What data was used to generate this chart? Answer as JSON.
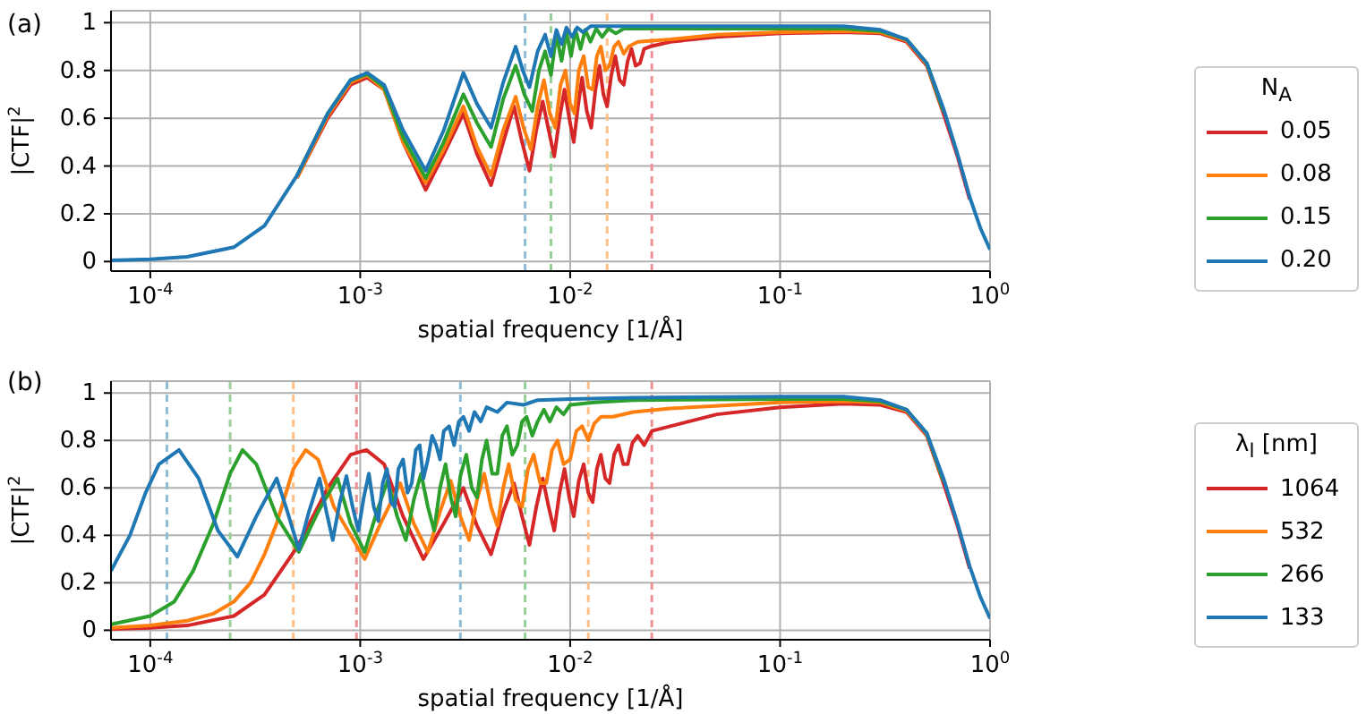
{
  "chart_data": [
    {
      "type": "line",
      "title": "(a)",
      "xlabel": "spatial frequency [1/Å]",
      "ylabel": "|CTF|$^{2}$",
      "legend_title": "N$_{A}$",
      "legend": "right",
      "grid": true,
      "log": "x",
      "xlim": [
        6.5e-05,
        1
      ],
      "xticks": [
        {
          "value": 0.0001,
          "label": "10$^{-4}$"
        },
        {
          "value": 0.001,
          "label": "10$^{-3}$"
        },
        {
          "value": 0.01,
          "label": "10$^{-2}$"
        },
        {
          "value": 0.1,
          "label": "10$^{-1}$"
        },
        {
          "value": 1,
          "label": "10$^{0}$"
        }
      ],
      "ylim": [
        -0.04,
        1.05
      ],
      "yticks": [
        0,
        0.2,
        0.4,
        0.6,
        0.8,
        1
      ],
      "ref_lines": [
        {
          "axis": "x",
          "value": 0.0245,
          "color": "#eb9394",
          "line_style": "dashed"
        },
        {
          "axis": "x",
          "value": 0.015,
          "color": "#ffbf87",
          "line_style": "dashed"
        },
        {
          "axis": "x",
          "value": 0.0081,
          "color": "#95d095",
          "line_style": "dashed"
        },
        {
          "axis": "x",
          "value": 0.0061,
          "color": "#8fbbd9",
          "line_style": "dashed"
        }
      ],
      "series": [
        {
          "name": "0.05",
          "color": "#d62728",
          "x": [
            0.0005,
            0.0007,
            0.0009,
            0.00108,
            0.0013,
            0.0016,
            0.00205,
            0.0025,
            0.0031,
            0.0036,
            0.0042,
            0.0048,
            0.0054,
            0.0059,
            0.0064,
            0.0069,
            0.0074,
            0.0079,
            0.0084,
            0.0089,
            0.0094,
            0.0099,
            0.0104,
            0.0109,
            0.0114,
            0.012,
            0.0126,
            0.0132,
            0.0138,
            0.0144,
            0.015,
            0.0157,
            0.0164,
            0.0172,
            0.018,
            0.0188,
            0.0196,
            0.0205,
            0.0215,
            0.0225,
            0.024,
            0.03,
            0.05,
            0.1,
            0.2,
            0.3,
            0.4,
            0.5,
            0.6,
            0.7,
            0.8
          ],
          "values": [
            0.35,
            0.6,
            0.74,
            0.77,
            0.72,
            0.5,
            0.3,
            0.45,
            0.62,
            0.45,
            0.32,
            0.5,
            0.65,
            0.5,
            0.38,
            0.55,
            0.67,
            0.55,
            0.44,
            0.6,
            0.72,
            0.6,
            0.5,
            0.65,
            0.77,
            0.63,
            0.56,
            0.72,
            0.82,
            0.7,
            0.65,
            0.78,
            0.86,
            0.76,
            0.74,
            0.84,
            0.89,
            0.82,
            0.83,
            0.89,
            0.9,
            0.92,
            0.94,
            0.955,
            0.96,
            0.955,
            0.92,
            0.82,
            0.62,
            0.44,
            0.26
          ]
        },
        {
          "name": "0.08",
          "color": "#ff7f0e",
          "x": [
            0.0005,
            0.0007,
            0.0009,
            0.00108,
            0.0013,
            0.0016,
            0.00205,
            0.0025,
            0.0031,
            0.0036,
            0.0042,
            0.0048,
            0.0055,
            0.006,
            0.0065,
            0.007,
            0.0075,
            0.008,
            0.0085,
            0.009,
            0.0095,
            0.01,
            0.0105,
            0.011,
            0.0116,
            0.0122,
            0.0128,
            0.0134,
            0.014,
            0.0147,
            0.0154,
            0.0162,
            0.017,
            0.018,
            0.019,
            0.021,
            0.03,
            0.05,
            0.1,
            0.2,
            0.3,
            0.4,
            0.5,
            0.6
          ],
          "values": [
            0.35,
            0.61,
            0.75,
            0.78,
            0.72,
            0.5,
            0.33,
            0.47,
            0.65,
            0.48,
            0.36,
            0.55,
            0.69,
            0.56,
            0.47,
            0.65,
            0.76,
            0.62,
            0.56,
            0.74,
            0.8,
            0.66,
            0.62,
            0.8,
            0.86,
            0.73,
            0.72,
            0.86,
            0.9,
            0.8,
            0.82,
            0.9,
            0.92,
            0.87,
            0.9,
            0.92,
            0.93,
            0.95,
            0.96,
            0.965,
            0.96,
            0.925,
            0.825,
            0.63
          ]
        },
        {
          "name": "0.15",
          "color": "#2ca02c",
          "x": [
            0.0005,
            0.0007,
            0.0009,
            0.00108,
            0.0013,
            0.0016,
            0.00205,
            0.0025,
            0.0031,
            0.0036,
            0.0042,
            0.0048,
            0.0055,
            0.00605,
            0.0066,
            0.0071,
            0.0076,
            0.0081,
            0.0086,
            0.0091,
            0.0096,
            0.0101,
            0.0106,
            0.0112,
            0.0118,
            0.0125,
            0.0133,
            0.0142,
            0.0152,
            0.0165,
            0.018,
            0.025,
            0.1,
            0.2,
            0.3,
            0.4,
            0.5,
            0.6
          ],
          "values": [
            0.36,
            0.62,
            0.76,
            0.785,
            0.73,
            0.52,
            0.35,
            0.5,
            0.7,
            0.58,
            0.48,
            0.68,
            0.82,
            0.7,
            0.63,
            0.8,
            0.88,
            0.78,
            0.95,
            0.84,
            0.96,
            0.86,
            0.97,
            0.89,
            0.97,
            0.92,
            0.975,
            0.94,
            0.975,
            0.955,
            0.975,
            0.975,
            0.975,
            0.975,
            0.965,
            0.93,
            0.83,
            0.63
          ]
        },
        {
          "name": "0.20",
          "color": "#1f77b4",
          "x": [
            6.5e-05,
            0.0001,
            0.00015,
            0.00025,
            0.00035,
            0.0005,
            0.0007,
            0.0009,
            0.00108,
            0.0013,
            0.0016,
            0.00205,
            0.0025,
            0.0031,
            0.0036,
            0.0042,
            0.0048,
            0.0055,
            0.00595,
            0.0064,
            0.007,
            0.0076,
            0.0081,
            0.0086,
            0.0091,
            0.0096,
            0.0102,
            0.0108,
            0.0115,
            0.0125,
            0.015,
            0.03,
            0.1,
            0.2,
            0.3,
            0.4,
            0.5,
            0.6,
            0.7,
            0.8,
            0.9,
            1
          ],
          "values": [
            0.005,
            0.01,
            0.02,
            0.06,
            0.15,
            0.36,
            0.62,
            0.76,
            0.79,
            0.74,
            0.55,
            0.38,
            0.55,
            0.79,
            0.66,
            0.56,
            0.75,
            0.9,
            0.8,
            0.73,
            0.88,
            0.95,
            0.86,
            0.97,
            0.91,
            0.98,
            0.94,
            0.98,
            0.96,
            0.985,
            0.985,
            0.985,
            0.985,
            0.985,
            0.97,
            0.93,
            0.83,
            0.64,
            0.45,
            0.27,
            0.14,
            0.05
          ]
        }
      ]
    },
    {
      "type": "line",
      "title": "(b)",
      "xlabel": "spatial frequency [1/Å]",
      "ylabel": "|CTF|$^{2}$",
      "legend_title": "λ$_{l}$ [nm]",
      "legend": "right",
      "grid": true,
      "log": "x",
      "xlim": [
        6.5e-05,
        1
      ],
      "xticks": [
        {
          "value": 0.0001,
          "label": "10$^{-4}$"
        },
        {
          "value": 0.001,
          "label": "10$^{-3}$"
        },
        {
          "value": 0.01,
          "label": "10$^{-2}$"
        },
        {
          "value": 0.1,
          "label": "10$^{-1}$"
        },
        {
          "value": 1,
          "label": "10$^{0}$"
        }
      ],
      "ylim": [
        -0.04,
        1.05
      ],
      "yticks": [
        0,
        0.2,
        0.4,
        0.6,
        0.8,
        1
      ],
      "ref_lines": [
        {
          "axis": "x",
          "value": 0.00096,
          "color": "#eb9394",
          "line_style": "dashed"
        },
        {
          "axis": "x",
          "value": 0.0245,
          "color": "#eb9394",
          "line_style": "dashed"
        },
        {
          "axis": "x",
          "value": 0.00048,
          "color": "#ffbf87",
          "line_style": "dashed"
        },
        {
          "axis": "x",
          "value": 0.0122,
          "color": "#ffbf87",
          "line_style": "dashed"
        },
        {
          "axis": "x",
          "value": 0.00024,
          "color": "#95d095",
          "line_style": "dashed"
        },
        {
          "axis": "x",
          "value": 0.0061,
          "color": "#95d095",
          "line_style": "dashed"
        },
        {
          "axis": "x",
          "value": 0.00012,
          "color": "#8fbbd9",
          "line_style": "dashed"
        },
        {
          "axis": "x",
          "value": 0.003,
          "color": "#8fbbd9",
          "line_style": "dashed"
        }
      ],
      "series": [
        {
          "name": "1064",
          "color": "#d62728",
          "x": [
            6.5e-05,
            0.0001,
            0.00015,
            0.00025,
            0.00035,
            0.0005,
            0.0007,
            0.0009,
            0.00107,
            0.0013,
            0.0016,
            0.002,
            0.0025,
            0.0031,
            0.0036,
            0.0042,
            0.0048,
            0.0054,
            0.0059,
            0.0064,
            0.0069,
            0.0074,
            0.0079,
            0.0084,
            0.0089,
            0.0094,
            0.0099,
            0.0104,
            0.011,
            0.0116,
            0.0122,
            0.0128,
            0.0134,
            0.014,
            0.0147,
            0.0154,
            0.0162,
            0.017,
            0.0179,
            0.0188,
            0.0198,
            0.021,
            0.0225,
            0.0245,
            0.03,
            0.05,
            0.1,
            0.2,
            0.3,
            0.4,
            0.5,
            0.6,
            0.7,
            0.8
          ],
          "values": [
            0.005,
            0.01,
            0.02,
            0.06,
            0.15,
            0.35,
            0.6,
            0.74,
            0.76,
            0.7,
            0.48,
            0.3,
            0.45,
            0.6,
            0.44,
            0.32,
            0.5,
            0.62,
            0.48,
            0.36,
            0.52,
            0.64,
            0.52,
            0.42,
            0.58,
            0.68,
            0.56,
            0.48,
            0.63,
            0.7,
            0.58,
            0.54,
            0.68,
            0.74,
            0.64,
            0.62,
            0.74,
            0.78,
            0.7,
            0.7,
            0.79,
            0.82,
            0.78,
            0.84,
            0.86,
            0.91,
            0.94,
            0.955,
            0.95,
            0.92,
            0.82,
            0.62,
            0.44,
            0.26
          ]
        },
        {
          "name": "532",
          "color": "#ff7f0e",
          "x": [
            6.5e-05,
            0.0001,
            0.00015,
            0.0002,
            0.00025,
            0.0003,
            0.00035,
            0.0004,
            0.00048,
            0.00055,
            0.00063,
            0.00075,
            0.00105,
            0.00125,
            0.00155,
            0.0018,
            0.0021,
            0.0024,
            0.0027,
            0.003,
            0.0033,
            0.0036,
            0.0039,
            0.0042,
            0.0045,
            0.0048,
            0.0051,
            0.0055,
            0.0059,
            0.0063,
            0.0067,
            0.0072,
            0.0077,
            0.0082,
            0.0087,
            0.0093,
            0.01,
            0.0107,
            0.0114,
            0.0122,
            0.013,
            0.014,
            0.016,
            0.02,
            0.03,
            0.1,
            0.2,
            0.3,
            0.4,
            0.5,
            0.6
          ],
          "values": [
            0.01,
            0.02,
            0.04,
            0.07,
            0.12,
            0.2,
            0.32,
            0.45,
            0.68,
            0.76,
            0.72,
            0.52,
            0.3,
            0.45,
            0.62,
            0.45,
            0.33,
            0.5,
            0.63,
            0.48,
            0.38,
            0.55,
            0.66,
            0.52,
            0.44,
            0.6,
            0.7,
            0.55,
            0.52,
            0.68,
            0.74,
            0.62,
            0.62,
            0.76,
            0.8,
            0.7,
            0.72,
            0.84,
            0.86,
            0.8,
            0.87,
            0.9,
            0.9,
            0.92,
            0.935,
            0.96,
            0.965,
            0.96,
            0.925,
            0.825,
            0.63
          ]
        },
        {
          "name": "266",
          "color": "#2ca02c",
          "x": [
            6.5e-05,
            0.0001,
            0.00013,
            0.00016,
            0.0002,
            0.00024,
            0.000275,
            0.00032,
            0.0004,
            0.00051,
            0.00063,
            0.00078,
            0.0009,
            0.00105,
            0.0012,
            0.00135,
            0.0015,
            0.00165,
            0.0018,
            0.00195,
            0.0021,
            0.00225,
            0.0024,
            0.00255,
            0.0027,
            0.00285,
            0.003,
            0.0032,
            0.0034,
            0.0036,
            0.0038,
            0.004,
            0.00425,
            0.0045,
            0.00475,
            0.005,
            0.0053,
            0.0056,
            0.0059,
            0.0062,
            0.0066,
            0.007,
            0.0075,
            0.008,
            0.0086,
            0.0093,
            0.01,
            0.013,
            0.02,
            0.1,
            0.2,
            0.3,
            0.4,
            0.5,
            0.6
          ],
          "values": [
            0.025,
            0.06,
            0.12,
            0.25,
            0.45,
            0.66,
            0.76,
            0.7,
            0.48,
            0.33,
            0.5,
            0.64,
            0.45,
            0.33,
            0.5,
            0.63,
            0.48,
            0.38,
            0.55,
            0.66,
            0.52,
            0.42,
            0.6,
            0.7,
            0.56,
            0.48,
            0.65,
            0.74,
            0.6,
            0.56,
            0.72,
            0.8,
            0.66,
            0.66,
            0.82,
            0.86,
            0.74,
            0.78,
            0.88,
            0.9,
            0.82,
            0.88,
            0.93,
            0.88,
            0.94,
            0.91,
            0.95,
            0.96,
            0.97,
            0.975,
            0.975,
            0.965,
            0.93,
            0.83,
            0.63
          ]
        },
        {
          "name": "133",
          "color": "#1f77b4",
          "x": [
            6.5e-05,
            8e-05,
            9.5e-05,
            0.00011,
            0.000137,
            0.00017,
            0.00021,
            0.00026,
            0.00032,
            0.0004,
            0.00045,
            0.00051,
            0.00057,
            0.00064,
            0.00069,
            0.00074,
            0.0008,
            0.00086,
            0.00092,
            0.00098,
            0.00104,
            0.0011,
            0.00116,
            0.00122,
            0.00128,
            0.00134,
            0.0014,
            0.00146,
            0.00152,
            0.0016,
            0.00168,
            0.00176,
            0.00184,
            0.00192,
            0.002,
            0.0021,
            0.0022,
            0.0023,
            0.0024,
            0.0025,
            0.00265,
            0.0028,
            0.00295,
            0.0031,
            0.0033,
            0.0035,
            0.00375,
            0.004,
            0.0045,
            0.005,
            0.006,
            0.007,
            0.01,
            0.02,
            0.1,
            0.2,
            0.3,
            0.4,
            0.5,
            0.6,
            0.7,
            0.8,
            0.9,
            1
          ],
          "values": [
            0.25,
            0.4,
            0.58,
            0.7,
            0.76,
            0.64,
            0.42,
            0.31,
            0.48,
            0.64,
            0.5,
            0.34,
            0.5,
            0.64,
            0.5,
            0.38,
            0.54,
            0.65,
            0.52,
            0.42,
            0.56,
            0.66,
            0.52,
            0.46,
            0.62,
            0.68,
            0.54,
            0.52,
            0.68,
            0.72,
            0.58,
            0.62,
            0.76,
            0.78,
            0.64,
            0.72,
            0.82,
            0.78,
            0.72,
            0.84,
            0.86,
            0.78,
            0.88,
            0.9,
            0.84,
            0.92,
            0.88,
            0.94,
            0.92,
            0.96,
            0.95,
            0.97,
            0.975,
            0.98,
            0.985,
            0.985,
            0.97,
            0.93,
            0.83,
            0.64,
            0.45,
            0.27,
            0.14,
            0.05
          ]
        }
      ]
    }
  ]
}
